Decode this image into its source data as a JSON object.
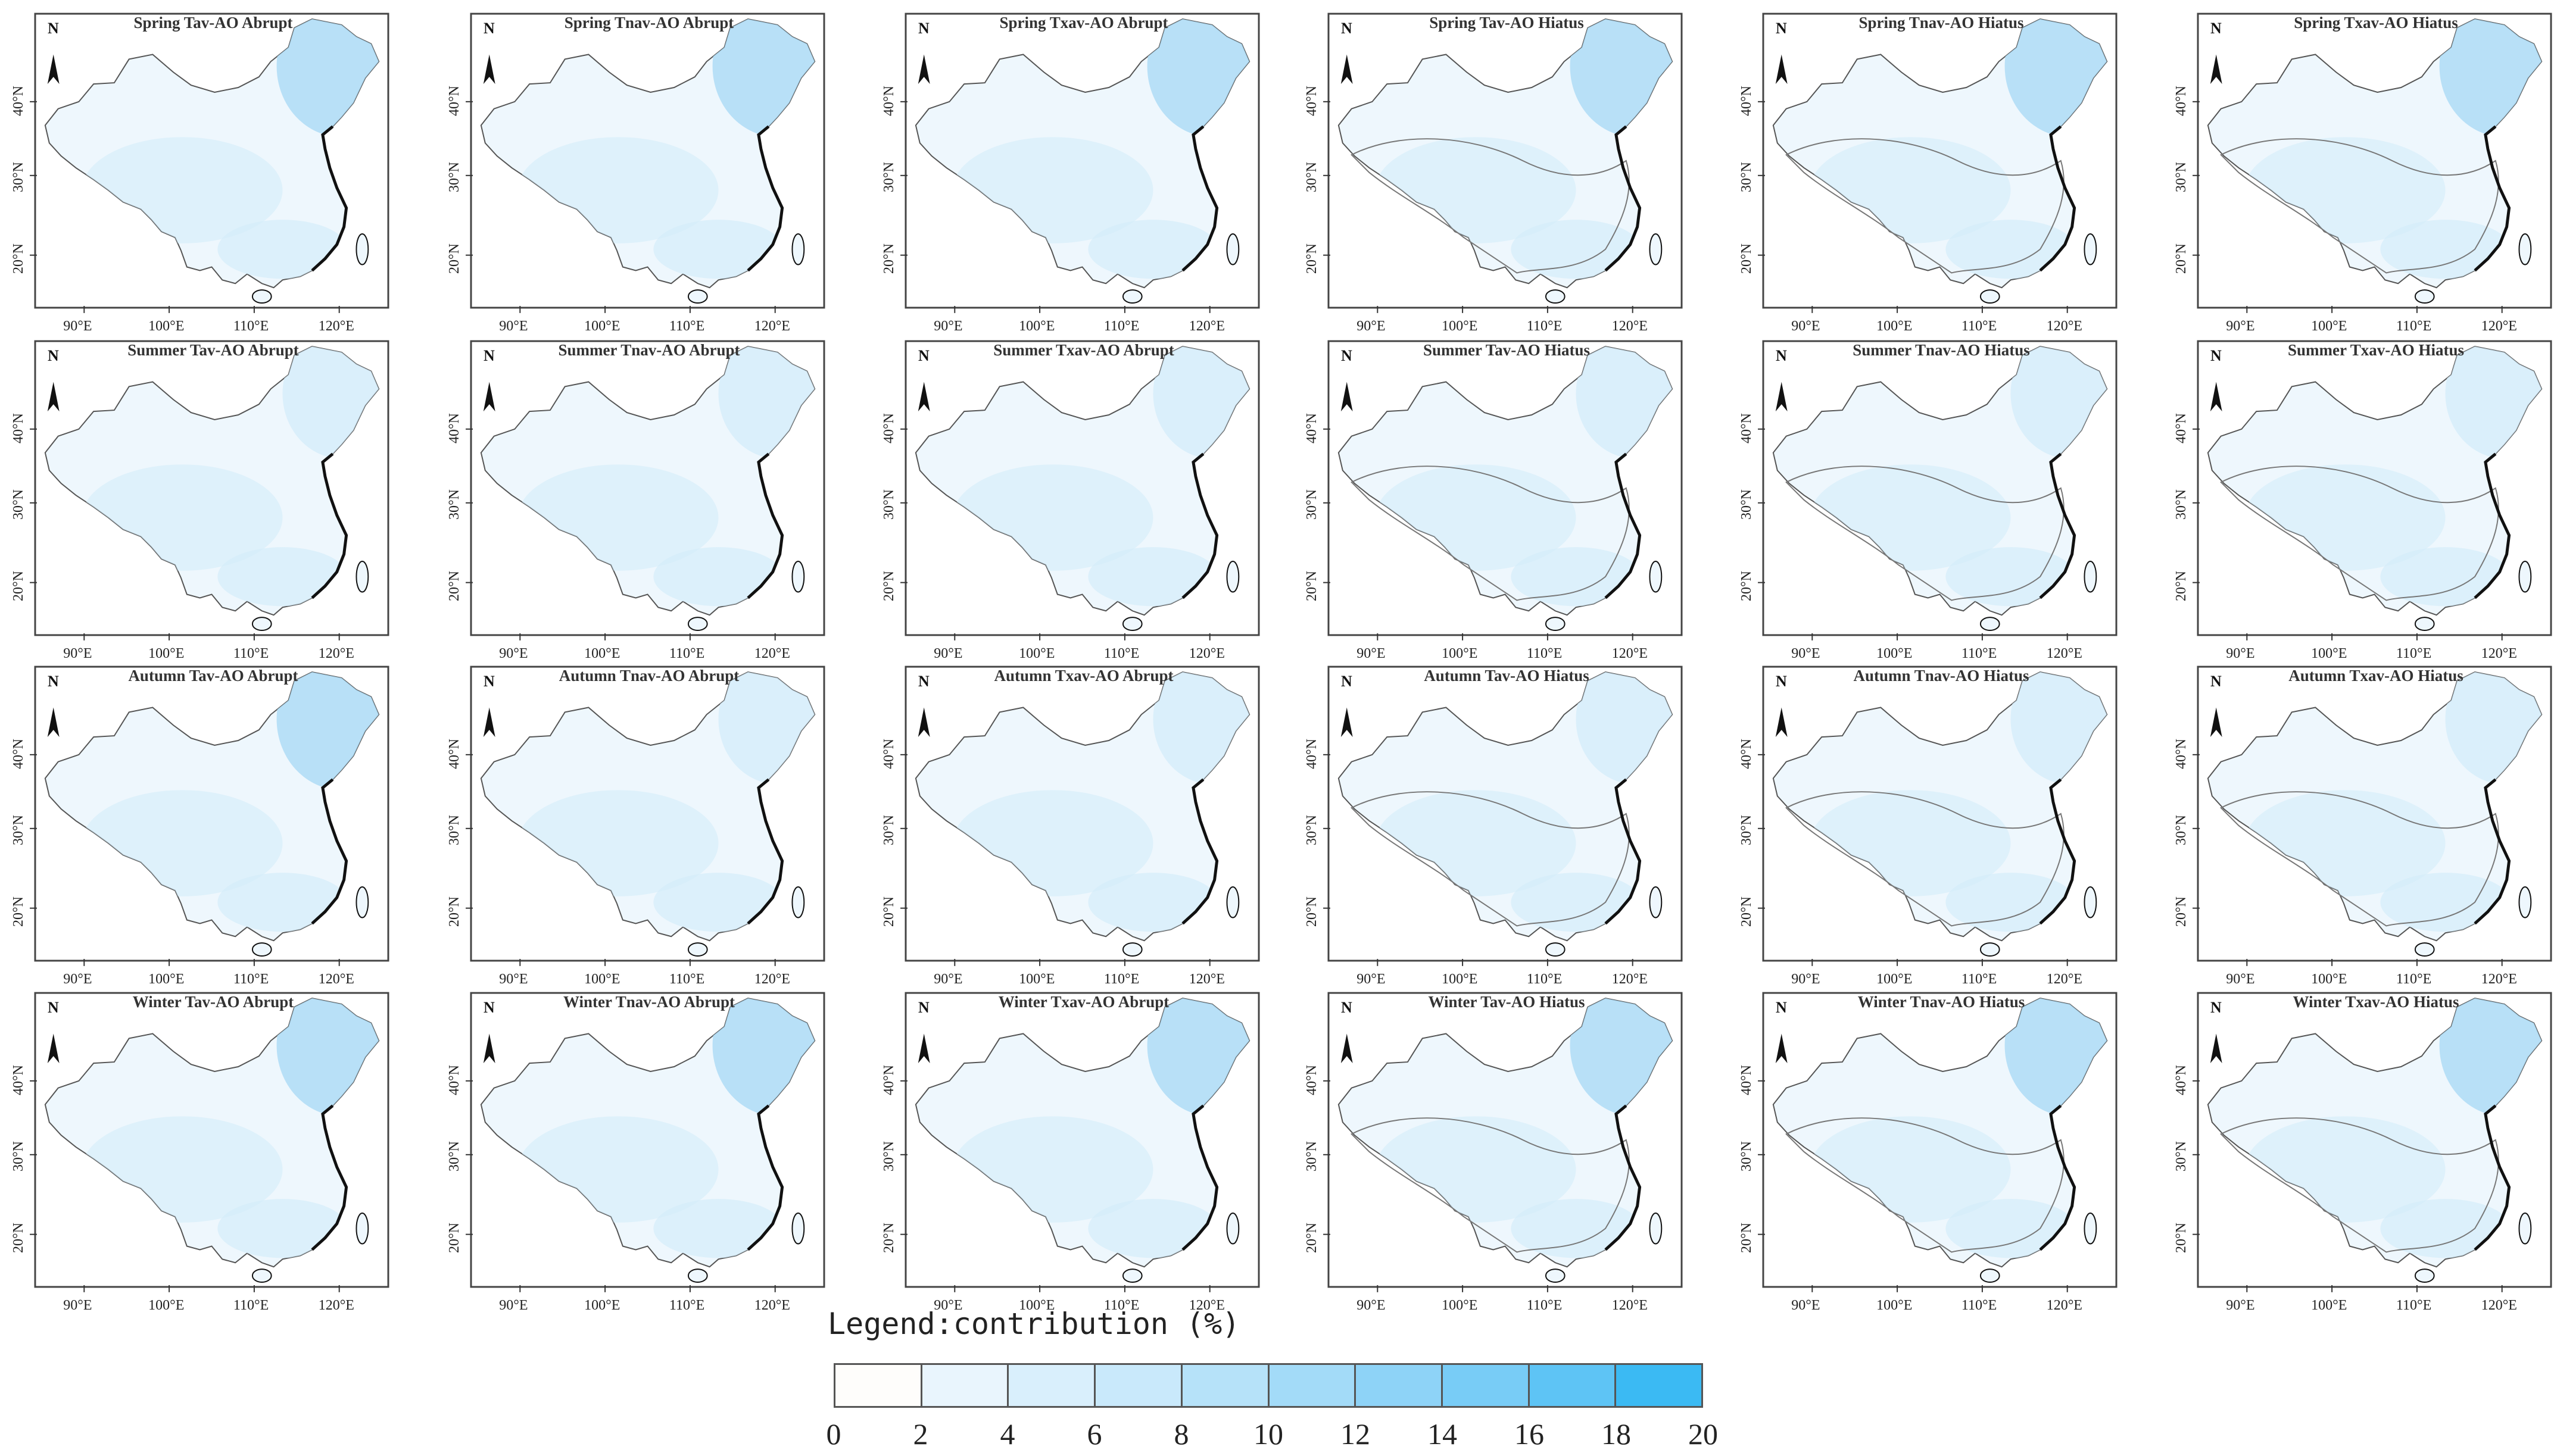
{
  "panels": [
    [
      {
        "title": "Spring Tav-AO Abrupt",
        "boundary": false,
        "dark": true
      },
      {
        "title": "Spring Tnav-AO Abrupt",
        "boundary": false,
        "dark": true
      },
      {
        "title": "Spring Txav-AO Abrupt",
        "boundary": false,
        "dark": true
      },
      {
        "title": "Spring Tav-AO Hiatus",
        "boundary": true,
        "dark": true
      },
      {
        "title": "Spring Tnav-AO Hiatus",
        "boundary": true,
        "dark": true
      },
      {
        "title": "Spring Txav-AO Hiatus",
        "boundary": true,
        "dark": true
      }
    ],
    [
      {
        "title": "Summer Tav-AO Abrupt",
        "boundary": false,
        "dark": false
      },
      {
        "title": "Summer Tnav-AO Abrupt",
        "boundary": false,
        "dark": false
      },
      {
        "title": "Summer Txav-AO Abrupt",
        "boundary": false,
        "dark": false
      },
      {
        "title": "Summer Tav-AO Hiatus",
        "boundary": true,
        "dark": false
      },
      {
        "title": "Summer Tnav-AO Hiatus",
        "boundary": true,
        "dark": false
      },
      {
        "title": "Summer Txav-AO Hiatus",
        "boundary": true,
        "dark": false
      }
    ],
    [
      {
        "title": "Autumn Tav-AO Abrupt",
        "boundary": false,
        "dark": true
      },
      {
        "title": "Autumn Tnav-AO Abrupt",
        "boundary": false,
        "dark": false
      },
      {
        "title": "Autumn Txav-AO Abrupt",
        "boundary": false,
        "dark": false
      },
      {
        "title": "Autumn Tav-AO Hiatus",
        "boundary": true,
        "dark": false
      },
      {
        "title": "Autumn Tnav-AO Hiatus",
        "boundary": true,
        "dark": false
      },
      {
        "title": "Autumn Txav-AO Hiatus",
        "boundary": true,
        "dark": false
      }
    ],
    [
      {
        "title": "Winter Tav-AO Abrupt",
        "boundary": false,
        "dark": true
      },
      {
        "title": "Winter Tnav-AO Abrupt",
        "boundary": false,
        "dark": true
      },
      {
        "title": "Winter Txav-AO Abrupt",
        "boundary": false,
        "dark": true
      },
      {
        "title": "Winter Tav-AO Hiatus",
        "boundary": true,
        "dark": true
      },
      {
        "title": "Winter Tnav-AO Hiatus",
        "boundary": true,
        "dark": true
      },
      {
        "title": "Winter Txav-AO Hiatus",
        "boundary": true,
        "dark": true
      }
    ]
  ],
  "axes": {
    "lon_labels": [
      "90°E",
      "100°E",
      "110°E",
      "120°E"
    ],
    "lat_labels": [
      "40°N",
      "30°N",
      "20°N"
    ],
    "north_label": "N"
  },
  "legend": {
    "title": "Legend:contribution (%)",
    "ticks": [
      "0",
      "2",
      "4",
      "6",
      "8",
      "10",
      "12",
      "14",
      "16",
      "18",
      "20"
    ],
    "colors": [
      "#fefdfb",
      "#e9f5fd",
      "#d9effc",
      "#c9e9fb",
      "#b6e2f9",
      "#a3dbf8",
      "#8ed3f7",
      "#78ccf6",
      "#5ec4f5",
      "#3bbaf3"
    ]
  },
  "colors": {
    "light_fill": "#eef7fd",
    "mid_fill": "#d4ecfa",
    "dark_fill": "#aedcf6",
    "outline": "#555555",
    "coast": "#111111"
  }
}
